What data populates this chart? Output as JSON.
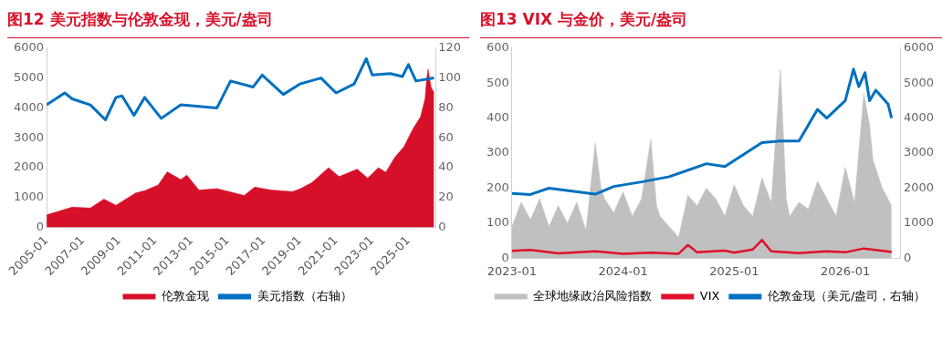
{
  "chart_data": [
    {
      "type": "line",
      "title": "图12  美元指数与伦敦金现，美元/盎司",
      "legend": "bottom",
      "grid": false,
      "xlim": [
        "2005-01",
        "2026-07"
      ],
      "xticks": [
        "2005-01",
        "2007-01",
        "2009-01",
        "2011-01",
        "2013-01",
        "2015-01",
        "2017-01",
        "2019-01",
        "2021-01",
        "2023-01",
        "2025-01"
      ],
      "ylim": [
        0,
        6000
      ],
      "yticks": [
        0,
        1000,
        2000,
        3000,
        4000,
        5000,
        6000
      ],
      "y2lim": [
        0,
        120
      ],
      "y2ticks": [
        0,
        20,
        40,
        60,
        80,
        100,
        120
      ],
      "series": [
        {
          "name": "伦敦金现",
          "type": "area",
          "color": "#d7102a",
          "x": [
            "2005-01",
            "2006-06",
            "2007-06",
            "2008-03",
            "2008-11",
            "2009-12",
            "2010-06",
            "2011-03",
            "2011-09",
            "2012-06",
            "2012-10",
            "2013-06",
            "2014-06",
            "2015-12",
            "2016-07",
            "2017-06",
            "2018-08",
            "2019-01",
            "2019-09",
            "2020-08",
            "2021-03",
            "2022-03",
            "2022-10",
            "2023-05",
            "2023-10",
            "2024-04",
            "2024-10",
            "2025-04",
            "2025-09",
            "2025-12",
            "2026-01",
            "2026-02",
            "2026-04",
            "2026-06"
          ],
          "values": [
            420,
            680,
            650,
            950,
            740,
            1150,
            1230,
            1420,
            1860,
            1600,
            1750,
            1250,
            1300,
            1070,
            1350,
            1250,
            1200,
            1290,
            1500,
            2000,
            1700,
            1950,
            1650,
            2000,
            1850,
            2350,
            2700,
            3300,
            3700,
            4300,
            4900,
            5300,
            4700,
            4500
          ]
        },
        {
          "name": "美元指数（右轴）",
          "type": "line",
          "axis": "y2",
          "color": "#0070c0",
          "x": [
            "2005-01",
            "2006-01",
            "2006-06",
            "2007-06",
            "2008-04",
            "2008-11",
            "2009-03",
            "2009-11",
            "2010-06",
            "2011-05",
            "2012-06",
            "2013-06",
            "2014-06",
            "2015-03",
            "2016-06",
            "2016-12",
            "2018-02",
            "2019-01",
            "2020-03",
            "2021-01",
            "2022-01",
            "2022-09",
            "2023-01",
            "2024-01",
            "2024-09",
            "2025-01",
            "2025-06",
            "2026-06"
          ],
          "values": [
            82,
            90,
            86,
            82,
            72,
            87,
            88,
            75,
            87,
            73,
            82,
            81,
            80,
            98,
            94,
            102,
            89,
            96,
            100,
            90,
            96,
            113,
            102,
            103,
            101,
            109,
            98,
            100
          ]
        }
      ]
    },
    {
      "type": "line",
      "title": "图13  VIX 与金价，美元/盎司",
      "legend": "bottom",
      "grid": false,
      "xlim": [
        "2023-01",
        "2026-07"
      ],
      "xticks": [
        "2023-01",
        "2024-01",
        "2025-01",
        "2026-01"
      ],
      "ylim": [
        0,
        600
      ],
      "yticks": [
        0,
        100,
        200,
        300,
        400,
        500,
        600
      ],
      "y2lim": [
        0,
        6000
      ],
      "y2ticks": [
        0,
        1000,
        2000,
        3000,
        4000,
        5000,
        6000
      ],
      "series": [
        {
          "name": "全球地缘政治风险指数",
          "type": "area",
          "color": "#c0c0c0",
          "x": [
            "2023-01",
            "2023-02",
            "2023-03",
            "2023-04",
            "2023-05",
            "2023-06",
            "2023-07",
            "2023-08",
            "2023-09",
            "2023-10",
            "2023-10-20",
            "2023-11",
            "2023-12",
            "2024-01",
            "2024-02",
            "2024-03",
            "2024-04",
            "2024-04-20",
            "2024-05",
            "2024-06",
            "2024-07",
            "2024-08",
            "2024-09",
            "2024-10",
            "2024-11",
            "2024-12",
            "2025-01",
            "2025-02",
            "2025-03",
            "2025-04",
            "2025-05",
            "2025-06",
            "2025-06-20",
            "2025-07",
            "2025-08",
            "2025-09",
            "2025-10",
            "2025-11",
            "2025-12",
            "2026-01",
            "2026-02",
            "2026-03",
            "2026-03-20",
            "2026-04",
            "2026-05",
            "2026-06"
          ],
          "values": [
            90,
            160,
            110,
            170,
            90,
            150,
            100,
            160,
            80,
            330,
            200,
            170,
            130,
            190,
            120,
            170,
            340,
            150,
            120,
            90,
            60,
            180,
            150,
            200,
            170,
            120,
            210,
            150,
            120,
            230,
            160,
            540,
            170,
            120,
            160,
            140,
            220,
            170,
            120,
            260,
            160,
            470,
            380,
            280,
            200,
            150
          ]
        },
        {
          "name": "VIX",
          "type": "line",
          "color": "#e0102a",
          "x": [
            "2023-01",
            "2023-03",
            "2023-06",
            "2023-10",
            "2024-01",
            "2024-04",
            "2024-07",
            "2024-08",
            "2024-09",
            "2024-12",
            "2025-01",
            "2025-03",
            "2025-04",
            "2025-05",
            "2025-08",
            "2025-11",
            "2026-01",
            "2026-03",
            "2026-06"
          ],
          "values": [
            21,
            24,
            14,
            20,
            13,
            16,
            13,
            38,
            17,
            22,
            16,
            25,
            52,
            20,
            15,
            20,
            17,
            28,
            18
          ]
        },
        {
          "name": "伦敦金现（美元/盎司，右轴）",
          "type": "line",
          "axis": "y2",
          "color": "#0070c0",
          "x": [
            "2023-01",
            "2023-03",
            "2023-05",
            "2023-10",
            "2023-12",
            "2024-03",
            "2024-06",
            "2024-10",
            "2024-12",
            "2025-04",
            "2025-06",
            "2025-08",
            "2025-10",
            "2025-11",
            "2026-01",
            "2026-01-28",
            "2026-02-15",
            "2026-03-05",
            "2026-03-20",
            "2026-04-10",
            "2026-05-20",
            "2026-06"
          ],
          "values": [
            1850,
            1820,
            2000,
            1830,
            2050,
            2180,
            2330,
            2700,
            2620,
            3300,
            3350,
            3350,
            4250,
            4000,
            4500,
            5400,
            4900,
            5300,
            4500,
            4800,
            4400,
            4000
          ]
        }
      ]
    }
  ]
}
